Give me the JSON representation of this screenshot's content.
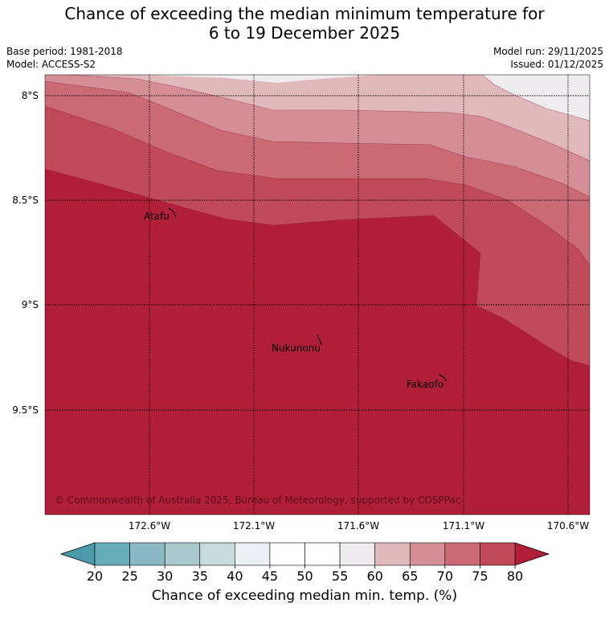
{
  "title": {
    "line1": "Chance of exceeding the median minimum temperature for",
    "line2": "6 to 19 December 2025"
  },
  "meta": {
    "base_period": "Base period: 1981-2018",
    "model": "Model: ACCESS-S2",
    "model_run": "Model run: 29/11/2025",
    "issued": "Issued: 01/12/2025"
  },
  "map": {
    "lat_labels": [
      "8°S",
      "8.5°S",
      "9°S",
      "9.5°S"
    ],
    "lon_labels": [
      "172.6°W",
      "172.1°W",
      "171.6°W",
      "171.1°W",
      "170.6°W"
    ],
    "places": [
      "Atafu",
      "Nukunonu",
      "Fakaofo"
    ],
    "copyright": "© Commonwealth of Australia 2025, Bureau of Meteorology, supported by COSPPac"
  },
  "colorbar": {
    "ticks": [
      "20",
      "25",
      "30",
      "35",
      "40",
      "45",
      "50",
      "55",
      "60",
      "65",
      "70",
      "75",
      "80"
    ],
    "colors": [
      "#66adb9",
      "#8ab9c3",
      "#a9c8cc",
      "#c8dadc",
      "#ebf0f2",
      "#ffffff",
      "#ffffff",
      "#eeecee",
      "#e1b9bd",
      "#d58e95",
      "#ca6a74",
      "#c04a57"
    ],
    "under_color": "#4a9aaa",
    "over_color": "#b11e38",
    "label": "Chance of exceeding median min. temp. (%)"
  },
  "legend_colors": {
    "band_55_60": "#eeecee",
    "band_60_65": "#e1b9bd",
    "band_65_70": "#d58e95",
    "band_70_75": "#ca6a74",
    "band_75_80": "#c04a57",
    "band_80_plus": "#b11e38"
  }
}
